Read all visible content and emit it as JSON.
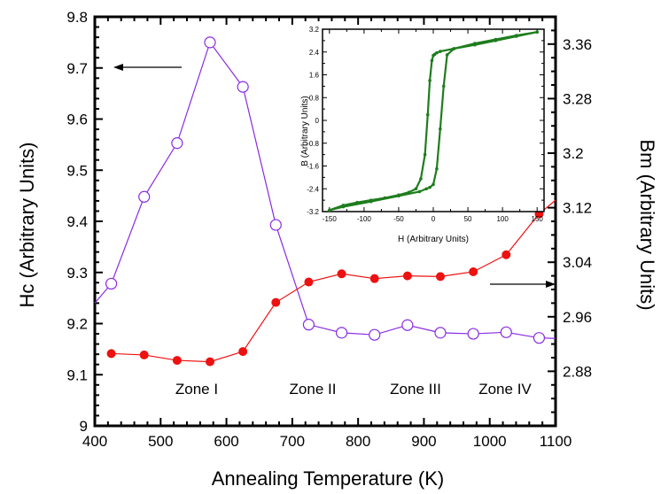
{
  "chart_data": [
    {
      "type": "line",
      "xlabel": "Annealing Temperature (K)",
      "ylabel": "Hc (Arbitrary Units)",
      "y2label": "Bm (Arbitrary Units)",
      "xlim": [
        400,
        1100
      ],
      "ylim": [
        9.0,
        9.8
      ],
      "y2lim": [
        2.8,
        3.4
      ],
      "x_ticks": [
        "400",
        "500",
        "600",
        "700",
        "800",
        "900",
        "1000",
        "1100"
      ],
      "y_ticks": [
        "9",
        "9.1",
        "9.2",
        "9.3",
        "9.4",
        "9.5",
        "9.6",
        "9.7",
        "9.8"
      ],
      "y2_ticks": [
        "2.88",
        "2.96",
        "3.04",
        "3.12",
        "3.2",
        "3.28",
        "3.36"
      ],
      "grid": false,
      "series": [
        {
          "axis": "left",
          "marker": "open-circle",
          "color": "#8a2be2",
          "x": [
            400,
            425,
            475,
            525,
            575,
            625,
            675,
            725,
            775,
            825,
            875,
            925,
            975,
            1025,
            1075,
            1100
          ],
          "y": [
            9.24,
            9.278,
            9.448,
            9.553,
            9.75,
            9.663,
            9.393,
            9.198,
            9.182,
            9.178,
            9.197,
            9.182,
            9.18,
            9.183,
            9.172,
            9.171
          ]
        },
        {
          "axis": "right",
          "marker": "filled-circle",
          "color": "#ee1111",
          "x": [
            425,
            475,
            525,
            575,
            625,
            675,
            725,
            775,
            825,
            875,
            925,
            975,
            1025,
            1075,
            1100
          ],
          "y": [
            2.906,
            2.904,
            2.896,
            2.894,
            2.909,
            2.981,
            3.011,
            3.023,
            3.016,
            3.02,
            3.019,
            3.026,
            3.051,
            3.111,
            3.131
          ]
        }
      ],
      "annotations": [
        "Zone I",
        "Zone II",
        "Zone III",
        "Zone IV"
      ]
    },
    {
      "type": "line",
      "xlabel": "H (Arbitrary Units)",
      "ylabel": "B (Arbitrary Units)",
      "xlim": [
        -160,
        160
      ],
      "ylim": [
        -3.2,
        3.2
      ],
      "x_ticks": [
        "-150",
        "-100",
        "-50",
        "0",
        "50",
        "100",
        "150"
      ],
      "y_ticks": [
        "3.2",
        "2.4",
        "1.6",
        "0.8",
        "0",
        "-0.8",
        "-1.6",
        "-2.4",
        "-3.2"
      ],
      "color": "#1e7d1e",
      "series": [
        {
          "x": [
            -150,
            -130,
            -110,
            -90,
            -70,
            -50,
            -35,
            -25,
            -18,
            -12,
            -8,
            -5,
            -2,
            0,
            2,
            5,
            10,
            30,
            60,
            90,
            120,
            150
          ],
          "y": [
            -3.15,
            -2.98,
            -2.88,
            -2.8,
            -2.72,
            -2.62,
            -2.52,
            -2.4,
            -2.05,
            -1.2,
            0.2,
            1.4,
            2.1,
            2.28,
            2.32,
            2.37,
            2.42,
            2.52,
            2.7,
            2.84,
            2.98,
            3.1
          ]
        },
        {
          "x": [
            150,
            120,
            90,
            60,
            30,
            20,
            15,
            10,
            5,
            0,
            -5,
            -10,
            -20,
            -50,
            -90,
            -130,
            -150
          ],
          "y": [
            3.1,
            2.95,
            2.8,
            2.65,
            2.52,
            2.3,
            1.2,
            -0.3,
            -1.7,
            -2.25,
            -2.35,
            -2.4,
            -2.5,
            -2.65,
            -2.85,
            -3.03,
            -3.15
          ]
        }
      ]
    }
  ]
}
